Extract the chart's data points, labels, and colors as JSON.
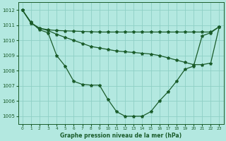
{
  "title": "Graphe pression niveau de la mer (hPa)",
  "bg_color": "#b3e8e0",
  "grid_color": "#8ecfc5",
  "line_color": "#1a5c2a",
  "xlim": [
    -0.5,
    23.5
  ],
  "ylim": [
    1004.5,
    1012.5
  ],
  "yticks": [
    1005,
    1006,
    1007,
    1008,
    1009,
    1010,
    1011,
    1012
  ],
  "xticks": [
    0,
    1,
    2,
    3,
    4,
    5,
    6,
    7,
    8,
    9,
    10,
    11,
    12,
    13,
    14,
    15,
    16,
    17,
    18,
    19,
    20,
    21,
    22,
    23
  ],
  "line1": [
    1012.0,
    1011.2,
    1010.7,
    1010.5,
    1009.0,
    1008.3,
    1007.3,
    1007.1,
    1007.05,
    1007.05,
    1006.1,
    1005.3,
    1005.0,
    1005.0,
    1005.0,
    1005.3,
    1006.0,
    1006.6,
    1007.3,
    1008.1,
    1008.3,
    1010.3,
    1010.5,
    1010.9
  ],
  "line2": [
    1012.0,
    1011.15,
    1010.8,
    1010.7,
    1010.65,
    1010.63,
    1010.61,
    1010.59,
    1010.57,
    1010.55,
    1010.55,
    1010.55,
    1010.55,
    1010.55,
    1010.55,
    1010.55,
    1010.55,
    1010.55,
    1010.55,
    1010.55,
    1010.55,
    1010.55,
    1010.55,
    1010.9
  ],
  "line3": [
    1012.0,
    1011.15,
    1010.8,
    1010.65,
    1010.4,
    1010.2,
    1010.0,
    1009.8,
    1009.6,
    1009.5,
    1009.4,
    1009.3,
    1009.25,
    1009.2,
    1009.15,
    1009.1,
    1009.0,
    1008.85,
    1008.7,
    1008.55,
    1008.4,
    1008.4,
    1008.5,
    1010.9
  ]
}
